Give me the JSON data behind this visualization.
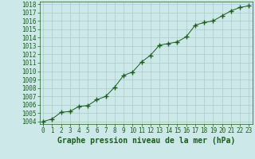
{
  "x": [
    0,
    1,
    2,
    3,
    4,
    5,
    6,
    7,
    8,
    9,
    10,
    11,
    12,
    13,
    14,
    15,
    16,
    17,
    18,
    19,
    20,
    21,
    22,
    23
  ],
  "y": [
    1004.0,
    1004.3,
    1005.1,
    1005.2,
    1005.8,
    1005.9,
    1006.6,
    1007.0,
    1008.1,
    1009.5,
    1009.9,
    1011.1,
    1011.9,
    1013.1,
    1013.3,
    1013.5,
    1014.1,
    1015.5,
    1015.8,
    1016.0,
    1016.6,
    1017.2,
    1017.6,
    1017.8
  ],
  "line_color": "#1a5c1a",
  "marker_color": "#1a5c1a",
  "bg_color": "#cce8e8",
  "grid_color": "#aacccc",
  "xlabel": "Graphe pression niveau de la mer (hPa)",
  "xlabel_fontsize": 7,
  "tick_fontsize": 5.5,
  "ylim_min": 1004,
  "ylim_max": 1018,
  "xlim_min": 0,
  "xlim_max": 23,
  "yticks": [
    1004,
    1005,
    1006,
    1007,
    1008,
    1009,
    1010,
    1011,
    1012,
    1013,
    1014,
    1015,
    1016,
    1017,
    1018
  ],
  "xticks": [
    0,
    1,
    2,
    3,
    4,
    5,
    6,
    7,
    8,
    9,
    10,
    11,
    12,
    13,
    14,
    15,
    16,
    17,
    18,
    19,
    20,
    21,
    22,
    23
  ]
}
